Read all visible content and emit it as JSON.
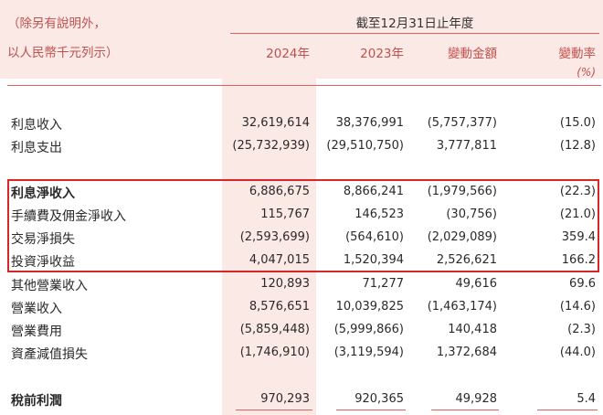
{
  "header": {
    "note_line1": "（除另有說明外，",
    "note_line2": "以人民幣千元列示）",
    "period": "截至12月31日止年度",
    "columns": [
      "2024年",
      "2023年",
      "變動金額",
      "變動率"
    ],
    "pct_unit": "(%)"
  },
  "rows": [
    {
      "label": "利息收入",
      "v2024": "32,619,614",
      "v2023": "38,376,991",
      "change": "(5,757,377)",
      "rate": "(15.0)"
    },
    {
      "label": "利息支出",
      "v2024": "(25,732,939)",
      "v2023": "(29,510,750)",
      "change": "3,777,811",
      "rate": "(12.8)"
    },
    {
      "label": "利息淨收入",
      "v2024": "6,886,675",
      "v2023": "8,866,241",
      "change": "(1,979,566)",
      "rate": "(22.3)"
    },
    {
      "label": "手續費及佣金淨收入",
      "v2024": "115,767",
      "v2023": "146,523",
      "change": "(30,756)",
      "rate": "(21.0)"
    },
    {
      "label": "交易淨損失",
      "v2024": "(2,593,699)",
      "v2023": "(564,610)",
      "change": "(2,029,089)",
      "rate": "359.4"
    },
    {
      "label": "投資淨收益",
      "v2024": "4,047,015",
      "v2023": "1,520,394",
      "change": "2,526,621",
      "rate": "166.2"
    },
    {
      "label": "其他營業收入",
      "v2024": "120,893",
      "v2023": "71,277",
      "change": "49,616",
      "rate": "69.6"
    },
    {
      "label": "營業收入",
      "v2024": "8,576,651",
      "v2023": "10,039,825",
      "change": "(1,463,174)",
      "rate": "(14.6)"
    },
    {
      "label": "營業費用",
      "v2024": "(5,859,448)",
      "v2023": "(5,999,866)",
      "change": "140,418",
      "rate": "(2.3)"
    },
    {
      "label": "資產減值損失",
      "v2024": "(1,746,910)",
      "v2023": "(3,119,594)",
      "change": "1,372,684",
      "rate": "(44.0)"
    },
    {
      "label": "稅前利潤",
      "v2024": "970,293",
      "v2023": "920,365",
      "change": "49,928",
      "rate": "5.4"
    }
  ]
}
